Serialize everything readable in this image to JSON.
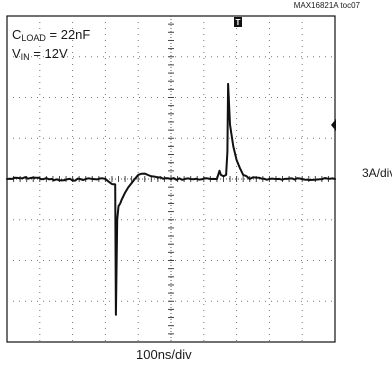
{
  "figure_tag": "MAX16821A toc07",
  "conditions": {
    "line1": {
      "symbol": "C",
      "subscript": "LOAD",
      "rest": " = 22nF"
    },
    "line2": {
      "symbol": "V",
      "subscript": "IN",
      "rest": " = 12V"
    }
  },
  "vertical_scale": "3A/div",
  "time_scale": "100ns/div",
  "trace_color": "#111111",
  "chart_data": {
    "type": "line",
    "divisions": {
      "x": 10,
      "y": 8
    },
    "grid": true,
    "xlim": [
      0,
      1000
    ],
    "ylim": [
      -12,
      12
    ],
    "trigger_marker": "T",
    "series": [
      {
        "x": [
          0,
          80,
          160,
          240,
          300,
          310,
          330,
          332,
          336,
          340,
          345,
          350,
          360,
          370,
          380,
          400,
          420,
          440,
          460,
          500,
          560,
          620,
          640,
          648,
          652,
          660,
          668,
          672,
          674,
          680,
          690,
          700,
          710,
          720,
          740,
          760,
          800,
          900,
          1000
        ],
        "y": [
          0.0,
          0.1,
          -0.1,
          0.0,
          0.0,
          -0.2,
          -0.4,
          -10.0,
          -3.0,
          -2.0,
          -1.8,
          -1.5,
          -1.0,
          -0.6,
          -0.3,
          0.3,
          0.4,
          0.2,
          0.1,
          0.0,
          0.0,
          0.0,
          0.0,
          0.6,
          0.3,
          0.2,
          0.3,
          2.0,
          7.0,
          4.0,
          2.4,
          1.4,
          0.8,
          0.3,
          0.0,
          0.1,
          0.0,
          0.0,
          0.0
        ]
      }
    ]
  }
}
